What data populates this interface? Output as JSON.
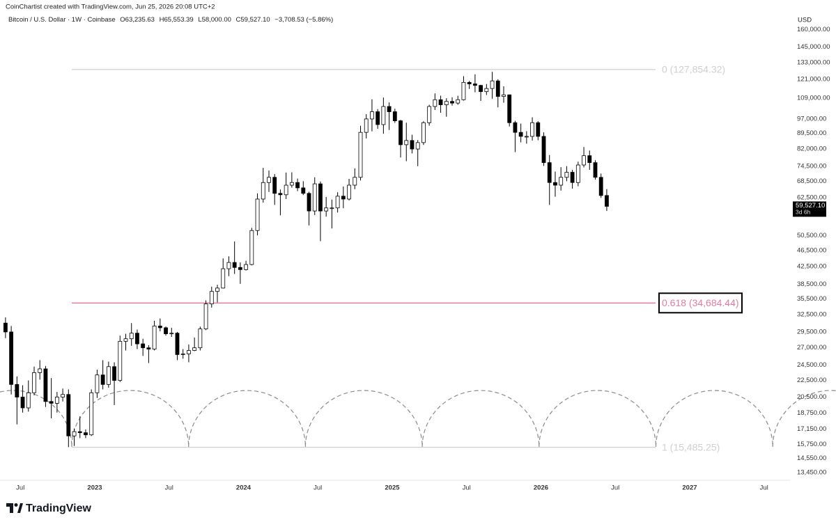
{
  "watermark": "CoinChartist created with TradingView.com, Jun 25, 2026 20:08 UTC+2",
  "symbol": "Bitcoin / U.S. Dollar · 1W · Coinbase",
  "ohlc": [
    "O63,235.63",
    "H65,553.39",
    "L58,000.00",
    "C59,527.10",
    "−3,708.53 (−5.86%)"
  ],
  "currency": "USD",
  "logo": "TradingView",
  "chart_data": {
    "type": "candlestick",
    "log_scale": true,
    "up_color": "#ffffff",
    "down_color": "#000000",
    "wick_color": "#000000",
    "xlim": [
      2022.363,
      2027.656
    ],
    "xticks": [
      {
        "value": 2022.5,
        "label": "Jul"
      },
      {
        "value": 2023,
        "label": "2023"
      },
      {
        "value": 2023.5,
        "label": "Jul"
      },
      {
        "value": 2024,
        "label": "2024"
      },
      {
        "value": 2024.5,
        "label": "Jul"
      },
      {
        "value": 2025,
        "label": "2025"
      },
      {
        "value": 2025.5,
        "label": "Jul"
      },
      {
        "value": 2026,
        "label": "2026"
      },
      {
        "value": 2026.5,
        "label": "Jul"
      },
      {
        "value": 2027,
        "label": "2027"
      },
      {
        "value": 2027.5,
        "label": "Jul"
      }
    ],
    "ylim": [
      12880,
      167800
    ],
    "yticks": [
      {
        "value": 160000,
        "label": "160,000.00"
      },
      {
        "value": 145000,
        "label": "145,000.00"
      },
      {
        "value": 133000,
        "label": "133,000.00"
      },
      {
        "value": 121000,
        "label": "121,000.00"
      },
      {
        "value": 109000,
        "label": "109,000.00"
      },
      {
        "value": 97000,
        "label": "97,000.00"
      },
      {
        "value": 89500,
        "label": "89,500.00"
      },
      {
        "value": 82000,
        "label": "82,000.00"
      },
      {
        "value": 74500,
        "label": "74,500.00"
      },
      {
        "value": 68500,
        "label": "68,500.00"
      },
      {
        "value": 62500,
        "label": "62,500.00"
      },
      {
        "value": 50500,
        "label": "50,500.00"
      },
      {
        "value": 46500,
        "label": "46,500.00"
      },
      {
        "value": 42500,
        "label": "42,500.00"
      },
      {
        "value": 38500,
        "label": "38,500.00"
      },
      {
        "value": 35500,
        "label": "35,500.00"
      },
      {
        "value": 32500,
        "label": "32,500.00"
      },
      {
        "value": 29500,
        "label": "29,500.00"
      },
      {
        "value": 27000,
        "label": "27,000.00"
      },
      {
        "value": 24500,
        "label": "24,500.00"
      },
      {
        "value": 22500,
        "label": "22,500.00"
      },
      {
        "value": 20500,
        "label": "20,500.00"
      },
      {
        "value": 18750,
        "label": "18,750.00"
      },
      {
        "value": 17150,
        "label": "17,150.00"
      },
      {
        "value": 15750,
        "label": "15,750.00"
      },
      {
        "value": 14550,
        "label": "14,550.00"
      },
      {
        "value": 13450,
        "label": "13,450.00"
      }
    ],
    "last_price": {
      "value": 59527.1,
      "label": "59,527.10"
    },
    "countdown": "3d 6h",
    "fib_levels": [
      {
        "level": 0,
        "price": 127854.32,
        "label": "0 (127,854.32)",
        "color": "#cfcfcf"
      },
      {
        "level": 0.618,
        "price": 34684.44,
        "label": "0.618 (34,684.44)",
        "color": "#e27ba3"
      },
      {
        "level": 1,
        "price": 15485.25,
        "label": "1 (15,485.25)",
        "color": "#cfcfcf"
      }
    ],
    "x": [
      2022.4,
      2022.4385,
      2022.477,
      2022.5155,
      2022.554,
      2022.5925,
      2022.631,
      2022.6695,
      2022.708,
      2022.7465,
      2022.785,
      2022.8235,
      2022.862,
      2022.9005,
      2022.939,
      2022.9775,
      2023.016,
      2023.0545,
      2023.093,
      2023.1315,
      2023.17,
      2023.2085,
      2023.247,
      2023.2855,
      2023.324,
      2023.3625,
      2023.401,
      2023.4395,
      2023.478,
      2023.5165,
      2023.555,
      2023.5935,
      2023.632,
      2023.6705,
      2023.709,
      2023.7475,
      2023.786,
      2023.8245,
      2023.863,
      2023.9015,
      2023.94,
      2023.9785,
      2024.017,
      2024.0555,
      2024.094,
      2024.1325,
      2024.171,
      2024.2095,
      2024.248,
      2024.2865,
      2024.325,
      2024.3635,
      2024.402,
      2024.4405,
      2024.479,
      2024.5175,
      2024.556,
      2024.5945,
      2024.633,
      2024.6715,
      2024.71,
      2024.7485,
      2024.787,
      2024.8255,
      2024.864,
      2024.9025,
      2024.941,
      2024.9795,
      2025.018,
      2025.0565,
      2025.095,
      2025.1335,
      2025.172,
      2025.2105,
      2025.249,
      2025.2875,
      2025.326,
      2025.3645,
      2025.403,
      2025.4415,
      2025.48,
      2025.5185,
      2025.557,
      2025.5955,
      2025.634,
      2025.6725,
      2025.711,
      2025.7495,
      2025.788,
      2025.8265,
      2025.865,
      2025.9035,
      2025.942,
      2025.9805,
      2026.019,
      2026.0575,
      2026.096,
      2026.1345,
      2026.173,
      2026.2115,
      2026.25,
      2026.2885,
      2026.327,
      2026.3655,
      2026.404,
      2026.4425
    ],
    "open": [
      31000,
      29500,
      22000,
      20500,
      19300,
      21000,
      23500,
      24000,
      20000,
      19800,
      20500,
      20800,
      16500,
      16900,
      16800,
      16600,
      21000,
      23200,
      22000,
      24300,
      22500,
      28000,
      28400,
      29300,
      27600,
      27000,
      26800,
      30500,
      30200,
      29200,
      29300,
      26000,
      26100,
      26600,
      27000,
      30000,
      34500,
      37000,
      37700,
      42000,
      43500,
      42300,
      41800,
      43000,
      52000,
      62000,
      68000,
      70000,
      64000,
      63500,
      67000,
      68000,
      66000,
      64000,
      58000,
      67500,
      58000,
      59000,
      59000,
      63000,
      62000,
      67000,
      70000,
      90000,
      97000,
      101000,
      94000,
      104000,
      101000,
      96000,
      84000,
      86000,
      82000,
      85000,
      95000,
      104000,
      108000,
      105000,
      107000,
      106000,
      108000,
      119000,
      118000,
      117000,
      113000,
      115000,
      120000,
      110000,
      111000,
      95000,
      90000,
      88000,
      88000,
      95000,
      88000,
      76000,
      68000,
      67000,
      70000,
      72000,
      68000,
      75000,
      79000,
      76000,
      70000,
      63235.63
    ],
    "high": [
      32000,
      30500,
      23000,
      21900,
      22500,
      24300,
      25200,
      24400,
      22800,
      21100,
      21500,
      21400,
      17200,
      18400,
      17100,
      21400,
      23900,
      25200,
      25000,
      24900,
      28900,
      29200,
      31000,
      29900,
      28400,
      27400,
      31400,
      31800,
      30400,
      30200,
      29500,
      26800,
      27500,
      28600,
      30400,
      35200,
      38000,
      38400,
      44500,
      45000,
      48900,
      43500,
      43900,
      52800,
      64000,
      73800,
      72700,
      71300,
      65400,
      71900,
      72000,
      69500,
      68500,
      64600,
      70000,
      68400,
      62700,
      61800,
      64400,
      66500,
      69400,
      73600,
      93400,
      99600,
      108300,
      102500,
      109300,
      106400,
      102700,
      96500,
      95000,
      88800,
      86200,
      95800,
      105000,
      111900,
      110500,
      108900,
      109500,
      110400,
      123200,
      120000,
      124500,
      117400,
      117900,
      126200,
      121100,
      116400,
      111200,
      96000,
      94500,
      90600,
      97900,
      95800,
      90000,
      79300,
      72300,
      74100,
      74500,
      73000,
      76400,
      82900,
      81300,
      77000,
      71500,
      65553.39
    ],
    "low": [
      28500,
      20800,
      17600,
      18800,
      18900,
      20700,
      22600,
      19400,
      18200,
      18800,
      20000,
      15500,
      15600,
      16300,
      16300,
      16500,
      20400,
      21400,
      21600,
      19600,
      22300,
      26600,
      27300,
      26800,
      25800,
      24800,
      26600,
      29600,
      28900,
      28700,
      25200,
      25400,
      24900,
      26500,
      26600,
      29800,
      33800,
      34800,
      37600,
      40300,
      40800,
      38600,
      41600,
      42800,
      50600,
      60800,
      64500,
      60000,
      56600,
      62000,
      66100,
      64800,
      63400,
      53500,
      56700,
      49000,
      56200,
      52600,
      57500,
      58900,
      61500,
      65500,
      68800,
      87000,
      90500,
      91800,
      89300,
      91200,
      94900,
      78200,
      76600,
      80000,
      74500,
      83900,
      93400,
      102000,
      100400,
      98200,
      104500,
      105000,
      107500,
      114700,
      112600,
      107300,
      110900,
      108600,
      103500,
      106200,
      93000,
      80600,
      85100,
      84500,
      86000,
      86100,
      74600,
      60000,
      62800,
      65000,
      68500,
      65700,
      66600,
      74000,
      73000,
      69100,
      62400,
      58000
    ],
    "close": [
      29500,
      22000,
      20500,
      19300,
      21000,
      23500,
      24000,
      20000,
      19800,
      20500,
      20800,
      16500,
      16900,
      16800,
      16600,
      21000,
      23200,
      22000,
      24300,
      22500,
      28000,
      28400,
      29300,
      27600,
      27000,
      26800,
      30500,
      30200,
      29200,
      29300,
      26000,
      26100,
      26600,
      27000,
      30000,
      34500,
      37000,
      37700,
      42000,
      43500,
      42300,
      41800,
      43000,
      52000,
      62000,
      68000,
      70000,
      64000,
      63500,
      67000,
      68000,
      66000,
      64000,
      58000,
      67500,
      58000,
      59000,
      59000,
      63000,
      62000,
      67000,
      70000,
      90000,
      97000,
      101000,
      94000,
      104000,
      101000,
      96000,
      84000,
      86000,
      82000,
      85000,
      95000,
      104000,
      108000,
      105000,
      107000,
      106000,
      108000,
      119000,
      118000,
      117000,
      113000,
      115000,
      120000,
      110000,
      111000,
      95000,
      90000,
      88000,
      88000,
      95000,
      88000,
      76000,
      68000,
      67000,
      70000,
      72000,
      68000,
      75000,
      79000,
      76000,
      70000,
      63235.63,
      59527.1
    ]
  }
}
